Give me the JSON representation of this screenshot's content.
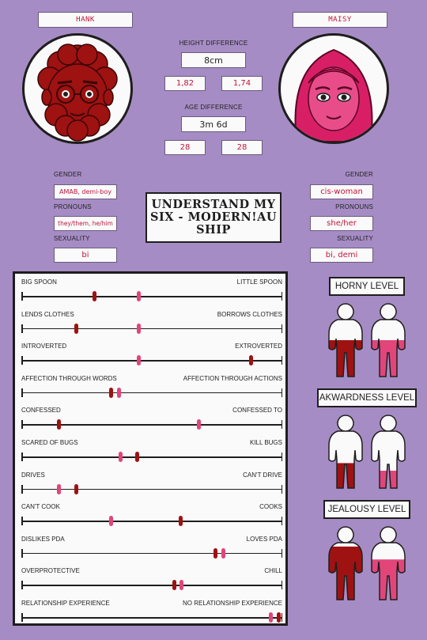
{
  "left": {
    "name": "HANK",
    "height": "1,82",
    "age": "28",
    "gender_label": "GENDER",
    "gender": "AMAB, demi-boy",
    "pronouns_label": "PRONOUNS",
    "pronouns": "they/them, he/him",
    "sexuality_label": "SEXUALITY",
    "sexuality": "bi"
  },
  "right": {
    "name": "MAISY",
    "height": "1,74",
    "age": "28",
    "gender_label": "GENDER",
    "gender": "cis-woman",
    "pronouns_label": "PRONOUNS",
    "pronouns": "she/her",
    "sexuality_label": "SEXUALITY",
    "sexuality": "bi, demi"
  },
  "height_diff_label": "HEIGHT DIFFERENCE",
  "height_diff": "8cm",
  "age_diff_label": "AGE DIFFERENCE",
  "age_diff": "3m 6d",
  "title": "UNDERSTAND MY SIX - MODERN!AU SHIP",
  "colors": {
    "hank": "#9e1212",
    "maisy": "#e2457a",
    "background": "#a68cc4"
  },
  "scales": [
    {
      "left": "BIG SPOON",
      "right": "LITTLE SPOON",
      "hank": 0.28,
      "maisy": 0.45
    },
    {
      "left": "LENDS CLOTHES",
      "right": "BORROWS CLOTHES",
      "hank": 0.21,
      "maisy": 0.45
    },
    {
      "left": "INTROVERTED",
      "right": "EXTROVERTED",
      "hank": 0.88,
      "maisy": 0.45
    },
    {
      "left": "AFFECTION THROUGH WORDS",
      "right": "AFFECTION THROUGH ACTIONS",
      "hank": 0.345,
      "maisy": 0.375
    },
    {
      "left": "CONFESSED",
      "right": "CONFESSED TO",
      "hank": 0.145,
      "maisy": 0.68
    },
    {
      "left": "SCARED OF BUGS",
      "right": "KILL BUGS",
      "hank": 0.445,
      "maisy": 0.38
    },
    {
      "left": "DRIVES",
      "right": "CAN'T DRIVE",
      "hank": 0.21,
      "maisy": 0.145
    },
    {
      "left": "CAN'T COOK",
      "right": "COOKS",
      "hank": 0.61,
      "maisy": 0.345
    },
    {
      "left": "DISLIKES PDA",
      "right": "LOVES PDA",
      "hank": 0.745,
      "maisy": 0.775
    },
    {
      "left": "OVERPROTECTIVE",
      "right": "CHILL",
      "hank": 0.585,
      "maisy": 0.615
    },
    {
      "left": "RELATIONSHIP EXPERIENCE",
      "right": "NO RELATIONSHIP EXPERIENCE",
      "hank": 0.985,
      "maisy": 0.955
    }
  ],
  "levels": [
    {
      "label": "HORNY LEVEL",
      "hank": 0.5,
      "maisy": 0.5
    },
    {
      "label": "AKWARDNESS LEVEL",
      "hank": 0.35,
      "maisy": 0.25
    },
    {
      "label": "JEALOUSY LEVEL",
      "hank": 0.72,
      "maisy": 0.55
    }
  ]
}
